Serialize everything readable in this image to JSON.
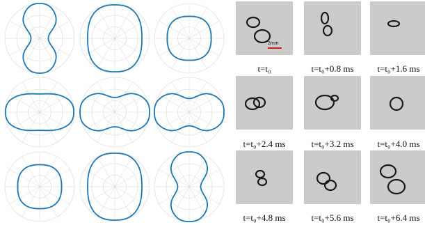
{
  "figure": {
    "polar_plots": [
      {
        "id": "r1c1",
        "shape": "vertical-peanut",
        "a": 1.0,
        "b": 0.55,
        "waist": 0.55
      },
      {
        "id": "r1c2",
        "shape": "vertical-capsule",
        "a": 0.96,
        "b": 0.78,
        "waist": 0.0
      },
      {
        "id": "r1c3",
        "shape": "circle",
        "a": 0.63,
        "b": 0.63,
        "waist": 0.0
      },
      {
        "id": "r2c1",
        "shape": "horizontal-capsule",
        "a": 0.98,
        "b": 0.55,
        "waist": 0.05
      },
      {
        "id": "r2c2",
        "shape": "horizontal-peanut",
        "a": 1.0,
        "b": 0.6,
        "waist": 0.3
      },
      {
        "id": "r2c3",
        "shape": "horizontal-peanut",
        "a": 1.0,
        "b": 0.6,
        "waist": 0.35
      },
      {
        "id": "r3c1",
        "shape": "circle",
        "a": 0.63,
        "b": 0.63,
        "waist": 0.0
      },
      {
        "id": "r3c2",
        "shape": "vertical-capsule",
        "a": 0.96,
        "b": 0.78,
        "waist": 0.0
      },
      {
        "id": "r3c3",
        "shape": "vertical-peanut",
        "a": 1.0,
        "b": 0.6,
        "waist": 0.45
      }
    ],
    "curve_color": "#1f77b4",
    "grid_color": "#d8d8d8",
    "photos": [
      {
        "caption": "t=t₀",
        "scale_bar_label": "2mm"
      },
      {
        "caption": "t=t₀+0.8 ms"
      },
      {
        "caption": "t=t₀+1.6 ms"
      },
      {
        "caption": "t=t₀+2.4 ms"
      },
      {
        "caption": "t=t₀+3.2 ms"
      },
      {
        "caption": "t=t₀+4.0 ms"
      },
      {
        "caption": "t=t₀+4.8 ms"
      },
      {
        "caption": "t=t₀+5.6 ms"
      },
      {
        "caption": "t=t₀+6.4 ms"
      }
    ],
    "scale_bar_color": "#cc1f1f"
  }
}
